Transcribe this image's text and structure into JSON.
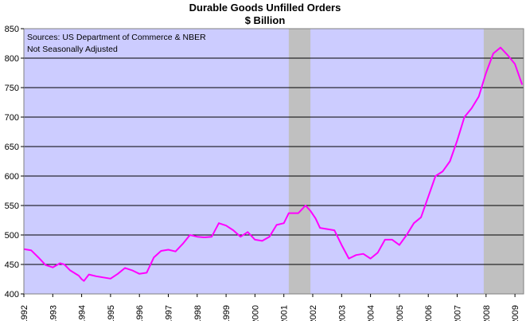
{
  "chart_data": {
    "type": "line",
    "title": "Durable Goods Unfilled Orders",
    "subtitle": "$ Billion",
    "annotation_lines": [
      "Sources: US Department of Commerce & NBER",
      "Not Seasonally Adjusted"
    ],
    "xlabel": "",
    "ylabel": "",
    "ylim": [
      400,
      850
    ],
    "xlim": [
      1992,
      2009.3
    ],
    "y_ticks": [
      400,
      450,
      500,
      550,
      600,
      650,
      700,
      750,
      800,
      850
    ],
    "x_ticks": [
      "1992",
      "1993",
      "1994",
      "1995",
      "1996",
      "1997",
      "1998",
      "1999",
      "2000",
      "2001",
      "2002",
      "2003",
      "2004",
      "2005",
      "2006",
      "2007",
      "2008",
      "2009"
    ],
    "grid": "horizontal",
    "colors": {
      "plot_background": "#ccccff",
      "recession": "#c0c0c0",
      "line": "#ff00ff",
      "gridline": "#000000"
    },
    "recessions": [
      {
        "start": 2001.17,
        "end": 2001.92
      },
      {
        "start": 2007.92,
        "end": 2009.3
      }
    ],
    "series": [
      {
        "name": "",
        "points": [
          [
            1992.0,
            476
          ],
          [
            1992.25,
            474
          ],
          [
            1992.5,
            462
          ],
          [
            1992.75,
            449
          ],
          [
            1993.0,
            445
          ],
          [
            1993.25,
            452
          ],
          [
            1993.4,
            450
          ],
          [
            1993.6,
            440
          ],
          [
            1993.9,
            431
          ],
          [
            1994.0,
            425
          ],
          [
            1994.08,
            422
          ],
          [
            1994.25,
            433
          ],
          [
            1994.5,
            430
          ],
          [
            1994.75,
            428
          ],
          [
            1995.0,
            426
          ],
          [
            1995.25,
            434
          ],
          [
            1995.5,
            444
          ],
          [
            1995.75,
            440
          ],
          [
            1996.0,
            434
          ],
          [
            1996.25,
            436
          ],
          [
            1996.5,
            462
          ],
          [
            1996.75,
            473
          ],
          [
            1997.0,
            475
          ],
          [
            1997.25,
            472
          ],
          [
            1997.5,
            485
          ],
          [
            1997.75,
            500
          ],
          [
            1998.0,
            497
          ],
          [
            1998.25,
            496
          ],
          [
            1998.5,
            497
          ],
          [
            1998.75,
            520
          ],
          [
            1999.0,
            516
          ],
          [
            1999.25,
            508
          ],
          [
            1999.5,
            497
          ],
          [
            1999.75,
            505
          ],
          [
            2000.0,
            492
          ],
          [
            2000.25,
            490
          ],
          [
            2000.5,
            497
          ],
          [
            2000.75,
            517
          ],
          [
            2001.0,
            520
          ],
          [
            2001.17,
            537
          ],
          [
            2001.5,
            537
          ],
          [
            2001.75,
            550
          ],
          [
            2001.92,
            541
          ],
          [
            2002.1,
            528
          ],
          [
            2002.25,
            512
          ],
          [
            2002.5,
            510
          ],
          [
            2002.75,
            508
          ],
          [
            2003.0,
            483
          ],
          [
            2003.25,
            460
          ],
          [
            2003.5,
            466
          ],
          [
            2003.75,
            468
          ],
          [
            2004.0,
            460
          ],
          [
            2004.25,
            470
          ],
          [
            2004.5,
            492
          ],
          [
            2004.75,
            492
          ],
          [
            2005.0,
            483
          ],
          [
            2005.25,
            500
          ],
          [
            2005.5,
            520
          ],
          [
            2005.75,
            530
          ],
          [
            2006.0,
            565
          ],
          [
            2006.25,
            600
          ],
          [
            2006.5,
            608
          ],
          [
            2006.75,
            625
          ],
          [
            2007.0,
            660
          ],
          [
            2007.25,
            700
          ],
          [
            2007.5,
            715
          ],
          [
            2007.75,
            735
          ],
          [
            2008.0,
            775
          ],
          [
            2008.25,
            808
          ],
          [
            2008.5,
            818
          ],
          [
            2008.75,
            805
          ],
          [
            2009.0,
            790
          ],
          [
            2009.25,
            755
          ]
        ]
      }
    ]
  }
}
